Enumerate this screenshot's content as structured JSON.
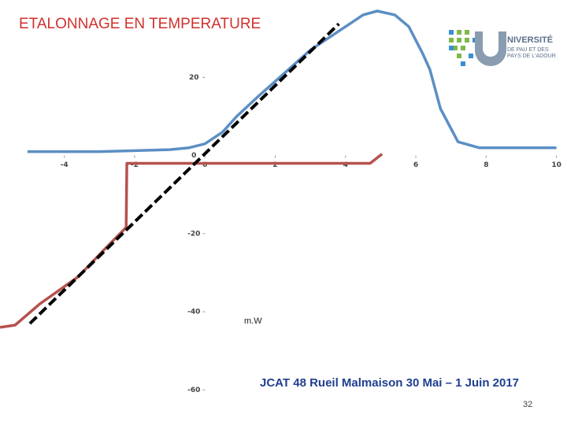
{
  "chart_data": {
    "type": "line",
    "title": "ETALONNAGE EN TEMPERATURE",
    "annotations": [
      "m.W"
    ],
    "xlim": [
      -5.83,
      10.3
    ],
    "ylim": [
      -69,
      37.8
    ],
    "xticks": [
      -4,
      -2,
      0,
      2,
      4,
      6,
      8,
      10
    ],
    "yticks": [
      -60,
      -40,
      -20,
      0,
      20
    ],
    "grid": false,
    "series": [
      {
        "color": "#5b8fc4",
        "x": [
          -5.05,
          -3,
          -1,
          -0.45,
          0,
          0.5,
          0.9,
          1.5,
          2,
          3,
          4,
          4.5,
          4.9,
          5.4,
          5.8,
          6.2,
          6.4,
          6.7,
          7.2,
          7.8,
          10
        ],
        "values": [
          1,
          1,
          1.5,
          2,
          3,
          6,
          10,
          15,
          19,
          27,
          33,
          36,
          37,
          36,
          33,
          26,
          22,
          12,
          3.5,
          2,
          2
        ]
      },
      {
        "color": "#b5524e",
        "x": [
          -5.83,
          -5.4,
          -4.7,
          -3.6,
          -2.9,
          -2.24,
          -2.22,
          0,
          2,
          4,
          4.7,
          5.04
        ],
        "values": [
          -44,
          -43.4,
          -38,
          -31,
          -24.4,
          -18.4,
          -2,
          -2,
          -2,
          -2,
          -2,
          0.4
        ]
      },
      {
        "color": "#000000",
        "dash": true,
        "x": [
          -4.98,
          3.81
        ],
        "values": [
          -43,
          33.7
        ]
      }
    ]
  },
  "footer": "JCAT 48 Rueil Malmaison 30 Mai – 1 Juin 2017",
  "page_number": "32",
  "logo": {
    "line1": "NIVERSITÉ",
    "line2": "DE PAU ET DES",
    "line3": "PAYS DE L'ADOUR"
  }
}
